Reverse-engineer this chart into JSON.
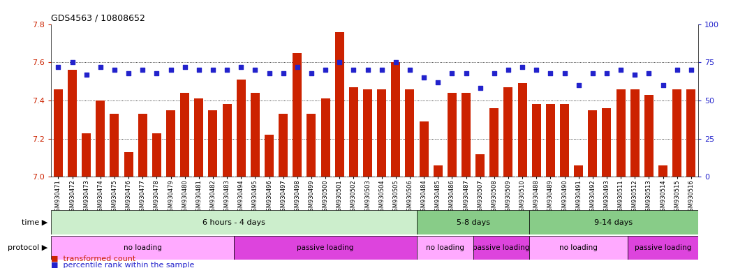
{
  "title": "GDS4563 / 10808652",
  "ylim": [
    7.0,
    7.8
  ],
  "ylim_right": [
    0,
    100
  ],
  "yticks_left": [
    7.0,
    7.2,
    7.4,
    7.6,
    7.8
  ],
  "yticks_right": [
    0,
    25,
    50,
    75,
    100
  ],
  "bar_color": "#cc2200",
  "dot_color": "#2222cc",
  "categories": [
    "GSM930471",
    "GSM930472",
    "GSM930473",
    "GSM930474",
    "GSM930475",
    "GSM930476",
    "GSM930477",
    "GSM930478",
    "GSM930479",
    "GSM930480",
    "GSM930481",
    "GSM930482",
    "GSM930483",
    "GSM930494",
    "GSM930495",
    "GSM930496",
    "GSM930497",
    "GSM930498",
    "GSM930499",
    "GSM930500",
    "GSM930501",
    "GSM930502",
    "GSM930503",
    "GSM930504",
    "GSM930505",
    "GSM930506",
    "GSM930484",
    "GSM930485",
    "GSM930486",
    "GSM930487",
    "GSM930507",
    "GSM930508",
    "GSM930509",
    "GSM930510",
    "GSM930488",
    "GSM930489",
    "GSM930490",
    "GSM930491",
    "GSM930492",
    "GSM930493",
    "GSM930511",
    "GSM930512",
    "GSM930513",
    "GSM930514",
    "GSM930515",
    "GSM930516"
  ],
  "bar_values": [
    7.46,
    7.56,
    7.23,
    7.4,
    7.33,
    7.13,
    7.33,
    7.23,
    7.35,
    7.44,
    7.41,
    7.35,
    7.38,
    7.51,
    7.44,
    7.22,
    7.33,
    7.65,
    7.33,
    7.41,
    7.76,
    7.47,
    7.46,
    7.46,
    7.6,
    7.46,
    7.29,
    7.06,
    7.44,
    7.44,
    7.12,
    7.36,
    7.47,
    7.49,
    7.38,
    7.38,
    7.38,
    7.06,
    7.35,
    7.36,
    7.46,
    7.46,
    7.43,
    7.06,
    7.46,
    7.46
  ],
  "dot_values": [
    72,
    75,
    67,
    72,
    70,
    68,
    70,
    68,
    70,
    72,
    70,
    70,
    70,
    72,
    70,
    68,
    68,
    72,
    68,
    70,
    75,
    70,
    70,
    70,
    75,
    70,
    65,
    62,
    68,
    68,
    58,
    68,
    70,
    72,
    70,
    68,
    68,
    60,
    68,
    68,
    70,
    67,
    68,
    60,
    70,
    70
  ],
  "time_bands": [
    {
      "label": "6 hours - 4 days",
      "start": 0,
      "end": 26,
      "color": "#cceecc"
    },
    {
      "label": "5-8 days",
      "start": 26,
      "end": 34,
      "color": "#88cc88"
    },
    {
      "label": "9-14 days",
      "start": 34,
      "end": 46,
      "color": "#88cc88"
    }
  ],
  "protocol_bands": [
    {
      "label": "no loading",
      "start": 0,
      "end": 13,
      "color": "#ffaaff"
    },
    {
      "label": "passive loading",
      "start": 13,
      "end": 26,
      "color": "#dd44dd"
    },
    {
      "label": "no loading",
      "start": 26,
      "end": 30,
      "color": "#ffaaff"
    },
    {
      "label": "passive loading",
      "start": 30,
      "end": 34,
      "color": "#dd44dd"
    },
    {
      "label": "no loading",
      "start": 34,
      "end": 41,
      "color": "#ffaaff"
    },
    {
      "label": "passive loading",
      "start": 41,
      "end": 46,
      "color": "#dd44dd"
    }
  ],
  "bg_color": "#ffffff",
  "tick_label_fontsize": 6,
  "axis_label_color_left": "#cc2200",
  "axis_label_color_right": "#2222cc",
  "xtick_bg_color": "#cccccc"
}
